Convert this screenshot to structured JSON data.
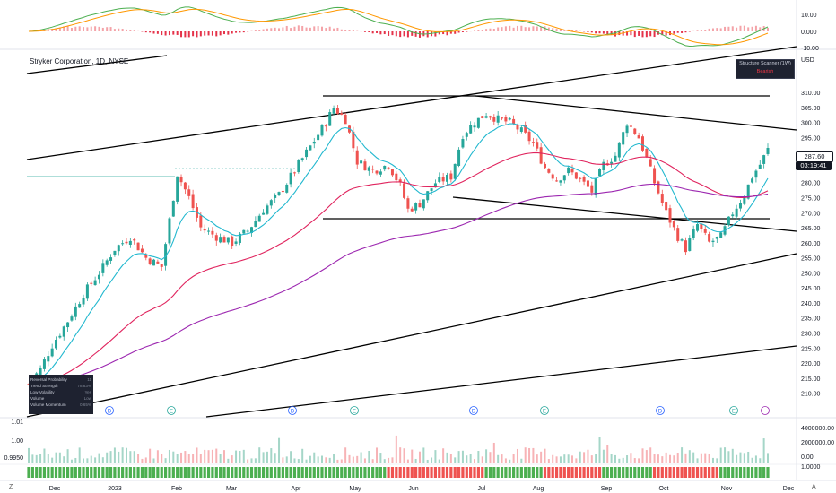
{
  "header": {
    "symbol_title": "Stryker Corporation, 1D, NYSE",
    "currency": "USD"
  },
  "price_tags": {
    "last_price": "287.60",
    "countdown": "03:19:41"
  },
  "structure_badge": {
    "title": "Structure Scanner (1W)",
    "subtitle": "Bearish"
  },
  "indicator_panel": {
    "rows": [
      {
        "label": "Reversal Probability",
        "value": "11"
      },
      {
        "label": "Trend Strength",
        "value": "78.83%"
      },
      {
        "label": "Low Volatility",
        "value": "Yes"
      },
      {
        "label": "Volume",
        "value": "Low"
      },
      {
        "label": "Volume Momentum",
        "value": "0.65%"
      }
    ]
  },
  "colors": {
    "up": "#26a69a",
    "down": "#ef5350",
    "ema_fast": "#22b8cf",
    "ema_mid": "#e0245e",
    "ema_slow": "#9c27b0",
    "macd_line": "#ff9800",
    "signal_line": "#4caf50"
  },
  "chart_data": {
    "type": "candlestick",
    "title": "Stryker Corporation, 1D, NYSE",
    "x_ticks": [
      "Dec",
      "2023",
      "Feb",
      "Mar",
      "Apr",
      "May",
      "Jun",
      "Jul",
      "Aug",
      "Sep",
      "Oct",
      "Nov",
      "Dec"
    ],
    "y_ticks": [
      "310.00",
      "305.00",
      "300.00",
      "295.00",
      "290.00",
      "285.00",
      "280.00",
      "275.00",
      "270.00",
      "265.00",
      "260.00",
      "255.00",
      "250.00",
      "245.00",
      "240.00",
      "235.00",
      "230.00",
      "225.00",
      "220.00",
      "215.00",
      "210.00"
    ],
    "ylim": [
      206,
      313
    ],
    "price_path": [
      [
        0,
        213
      ],
      [
        3,
        218
      ],
      [
        6,
        226
      ],
      [
        10,
        234
      ],
      [
        14,
        243
      ],
      [
        18,
        250
      ],
      [
        22,
        258
      ],
      [
        26,
        262
      ],
      [
        30,
        255
      ],
      [
        34,
        252
      ],
      [
        38,
        283
      ],
      [
        41,
        275
      ],
      [
        44,
        265
      ],
      [
        48,
        262
      ],
      [
        52,
        260
      ],
      [
        56,
        264
      ],
      [
        60,
        271
      ],
      [
        64,
        276
      ],
      [
        68,
        284
      ],
      [
        72,
        292
      ],
      [
        76,
        300
      ],
      [
        78,
        305
      ],
      [
        81,
        301
      ],
      [
        84,
        287
      ],
      [
        88,
        284
      ],
      [
        92,
        286
      ],
      [
        95,
        279
      ],
      [
        97,
        271
      ],
      [
        100,
        273
      ],
      [
        104,
        280
      ],
      [
        108,
        282
      ],
      [
        111,
        296
      ],
      [
        114,
        300
      ],
      [
        117,
        303
      ],
      [
        120,
        301
      ],
      [
        123,
        300
      ],
      [
        126,
        297
      ],
      [
        129,
        293
      ],
      [
        132,
        285
      ],
      [
        135,
        281
      ],
      [
        138,
        284
      ],
      [
        141,
        281
      ],
      [
        144,
        277
      ],
      [
        147,
        286
      ],
      [
        150,
        289
      ],
      [
        153,
        300
      ],
      [
        156,
        295
      ],
      [
        158,
        288
      ],
      [
        160,
        280
      ],
      [
        163,
        270
      ],
      [
        166,
        262
      ],
      [
        168,
        258
      ],
      [
        171,
        266
      ],
      [
        174,
        260
      ],
      [
        177,
        262
      ],
      [
        180,
        270
      ],
      [
        183,
        276
      ],
      [
        185,
        282
      ],
      [
        187,
        286
      ],
      [
        189,
        291
      ]
    ],
    "moving_averages": [
      {
        "name": "EMA fast",
        "color": "#22b8cf"
      },
      {
        "name": "EMA mid",
        "color": "#e0245e"
      },
      {
        "name": "EMA slow",
        "color": "#9c27b0"
      }
    ],
    "macd_ticks": [
      "10.00",
      "0.000",
      "-10.00"
    ],
    "volume_ticks": [
      "4000000.00",
      "2000000.00",
      "0.00"
    ],
    "left_scale_ticks": [
      "1.01",
      "1.00",
      "0.9950"
    ],
    "bottom_scale_ticks": [
      "1.0000"
    ],
    "events": [
      {
        "label": "D"
      },
      {
        "label": "E"
      },
      {
        "label": "D"
      },
      {
        "label": "E"
      },
      {
        "label": "D"
      },
      {
        "label": "E"
      },
      {
        "label": "D"
      },
      {
        "label": "E"
      }
    ]
  }
}
